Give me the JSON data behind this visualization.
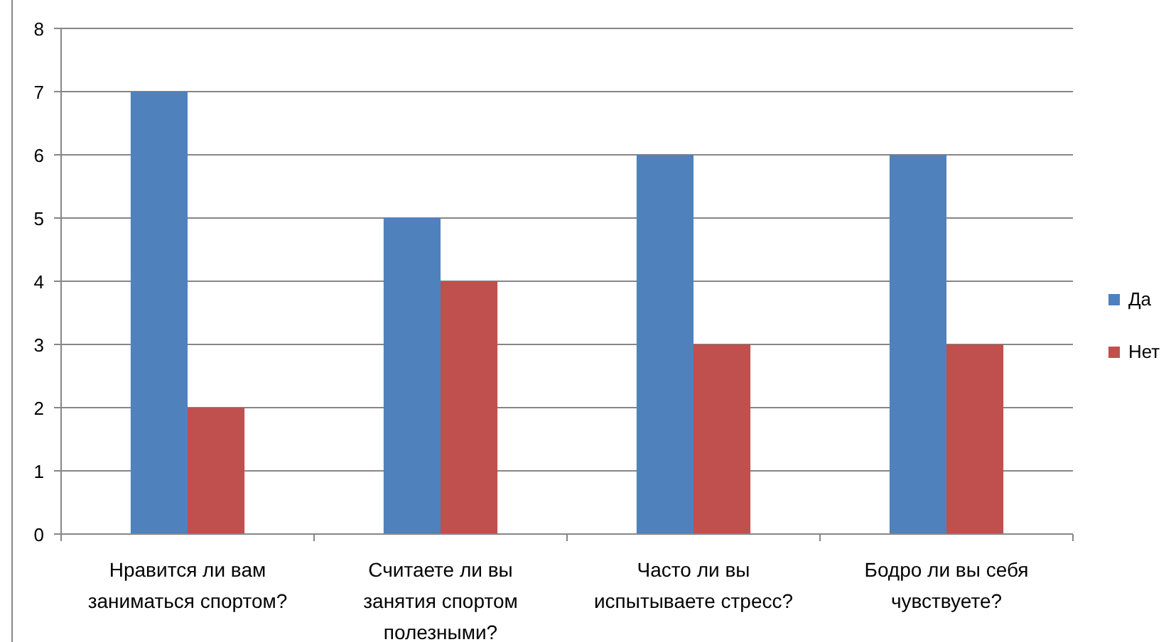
{
  "chart_data": {
    "type": "bar",
    "categories": [
      "Нравится ли вам заниматься спортом?",
      "Считаете  ли вы занятия спортом полезными?",
      "Часто ли вы испытываете стресс?",
      "Бодро ли вы себя чувствуете?"
    ],
    "series": [
      {
        "name": "Да",
        "color": "#4f81bd",
        "values": [
          7,
          5,
          6,
          6
        ]
      },
      {
        "name": "Нет",
        "color": "#c0504d",
        "values": [
          2,
          4,
          3,
          3
        ]
      }
    ],
    "ylim": [
      0,
      8
    ],
    "yticks": [
      0,
      1,
      2,
      3,
      4,
      5,
      6,
      7,
      8
    ],
    "grid": "y",
    "legend": "right"
  }
}
